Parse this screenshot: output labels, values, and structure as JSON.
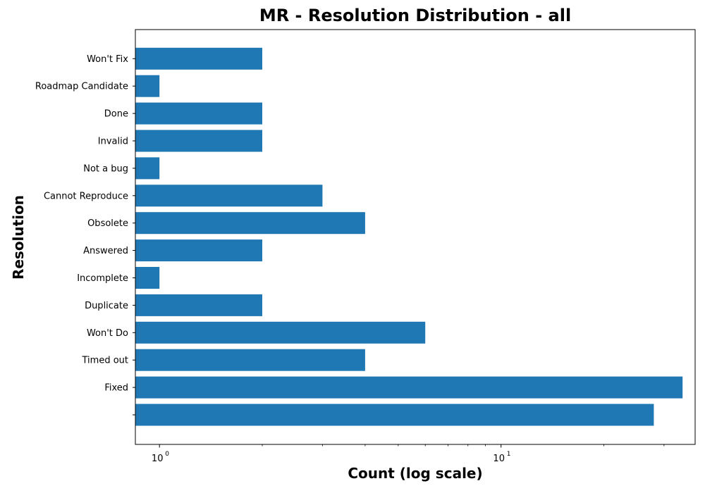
{
  "chart_data": {
    "type": "bar",
    "orientation": "horizontal",
    "title": "MR - Resolution Distribution - all",
    "xlabel": "Count (log scale)",
    "ylabel": "Resolution",
    "x_scale": "log",
    "xlim": [
      0.85,
      37
    ],
    "x_ticks": [
      {
        "value": 1,
        "base": "10",
        "exp": "0"
      },
      {
        "value": 10,
        "base": "10",
        "exp": "1"
      }
    ],
    "categories": [
      "Won't Fix",
      "Roadmap Candidate",
      "Done",
      "Invalid",
      "Not a bug",
      "Cannot Reproduce",
      "Obsolete",
      "Answered",
      "Incomplete",
      "Duplicate",
      "Won't Do",
      "Timed out",
      "Fixed",
      ""
    ],
    "values": [
      2,
      1,
      2,
      2,
      1,
      3,
      4,
      2,
      1,
      2,
      6,
      4,
      34,
      28
    ],
    "bar_color": "#1f77b4",
    "grid": false
  }
}
